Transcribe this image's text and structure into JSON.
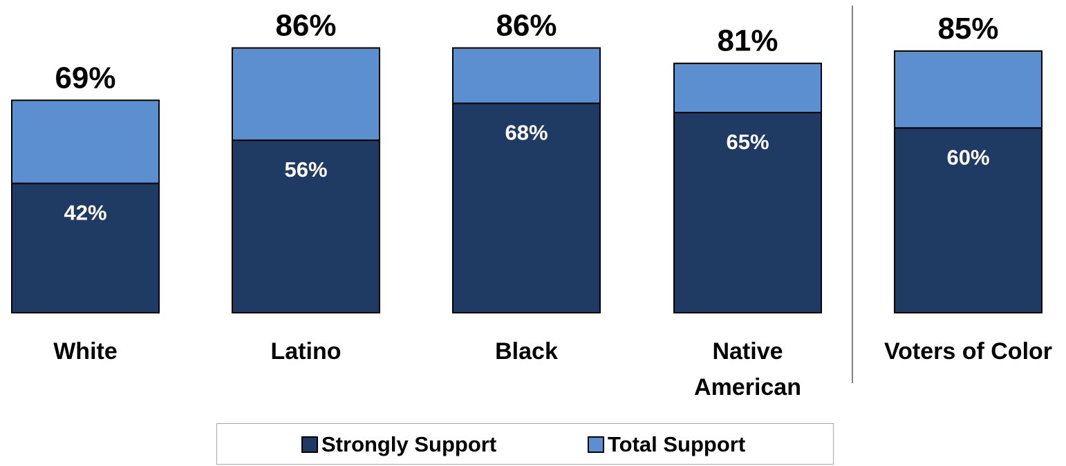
{
  "chart_data": {
    "type": "bar",
    "stacked_overlay": true,
    "categories": [
      "White",
      "Latino",
      "Black",
      "Native American",
      "Voters of Color"
    ],
    "category_lines": [
      [
        "White"
      ],
      [
        "Latino"
      ],
      [
        "Black"
      ],
      [
        "Native",
        "American"
      ],
      [
        "Voters of Color"
      ]
    ],
    "series": [
      {
        "name": "Strongly Support",
        "values": [
          42,
          56,
          68,
          65,
          60
        ]
      },
      {
        "name": "Total Support",
        "values": [
          69,
          86,
          86,
          81,
          85
        ]
      }
    ],
    "strong_labels": [
      "42%",
      "56%",
      "68%",
      "65%",
      "60%"
    ],
    "total_labels": [
      "69%",
      "86%",
      "86%",
      "81%",
      "85%"
    ],
    "separator_after_category": "Native American",
    "legend_position": "bottom",
    "grid": false,
    "colors": {
      "strongly_support": "#1f3a63",
      "total_support": "#5b8fd0",
      "bar_outline": "#000000",
      "separator": "#808080"
    }
  },
  "legend": {
    "items": [
      {
        "label": "Strongly Support"
      },
      {
        "label": "Total Support"
      }
    ]
  }
}
